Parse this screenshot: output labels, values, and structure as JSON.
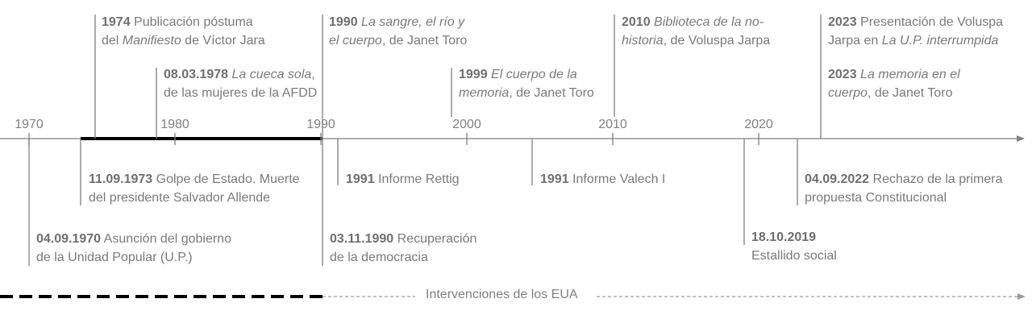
{
  "axis": {
    "ticks": [
      "1970",
      "1980",
      "1990",
      "2000",
      "2010",
      "2020"
    ]
  },
  "events_above": [
    {
      "date": "1974",
      "parts": [
        {
          "t": " Publicación póstuma",
          "s": "n"
        },
        {
          "t": "\n",
          "s": "n"
        },
        {
          "t": "del ",
          "s": "n"
        },
        {
          "t": "Manifiesto",
          "s": "i"
        },
        {
          "t": " de Víctor Jara",
          "s": "n"
        }
      ]
    },
    {
      "date": "08.03.1978",
      "parts": [
        {
          "t": " ",
          "s": "n"
        },
        {
          "t": "La cueca sola",
          "s": "i"
        },
        {
          "t": ",",
          "s": "n"
        },
        {
          "t": "\n",
          "s": "n"
        },
        {
          "t": "de las mujeres de la AFDD",
          "s": "n"
        }
      ]
    },
    {
      "date": "1990",
      "parts": [
        {
          "t": " ",
          "s": "n"
        },
        {
          "t": "La sangre, el río y",
          "s": "i"
        },
        {
          "t": "\n",
          "s": "n"
        },
        {
          "t": "el cuerpo",
          "s": "i"
        },
        {
          "t": ", de Janet Toro",
          "s": "n"
        }
      ]
    },
    {
      "date": "1999",
      "parts": [
        {
          "t": " ",
          "s": "n"
        },
        {
          "t": "El cuerpo de la",
          "s": "i"
        },
        {
          "t": "\n",
          "s": "n"
        },
        {
          "t": "memoria",
          "s": "i"
        },
        {
          "t": ", de Janet Toro",
          "s": "n"
        }
      ]
    },
    {
      "date": "2010",
      "parts": [
        {
          "t": " ",
          "s": "n"
        },
        {
          "t": "Biblioteca de la no-",
          "s": "i"
        },
        {
          "t": "\n",
          "s": "n"
        },
        {
          "t": "historia",
          "s": "i"
        },
        {
          "t": ", de Voluspa Jarpa",
          "s": "n"
        }
      ]
    },
    {
      "date": "2023",
      "parts": [
        {
          "t": " Presentación de Voluspa",
          "s": "n"
        },
        {
          "t": "\n",
          "s": "n"
        },
        {
          "t": "Jarpa en ",
          "s": "n"
        },
        {
          "t": "La U.P. interrumpida",
          "s": "i"
        }
      ]
    },
    {
      "date": "2023",
      "parts": [
        {
          "t": " ",
          "s": "n"
        },
        {
          "t": "La memoria en el",
          "s": "i"
        },
        {
          "t": "\n",
          "s": "n"
        },
        {
          "t": "cuerpo",
          "s": "i"
        },
        {
          "t": ", de Janet Toro",
          "s": "n"
        }
      ]
    }
  ],
  "events_below": [
    {
      "date": "11.09.1973",
      "parts": [
        {
          "t": " Golpe de Estado. Muerte",
          "s": "n"
        },
        {
          "t": "\n",
          "s": "n"
        },
        {
          "t": "del presidente Salvador Allende",
          "s": "n"
        }
      ]
    },
    {
      "date": "1991",
      "parts": [
        {
          "t": " Informe Rettig",
          "s": "n"
        }
      ]
    },
    {
      "date": "1991",
      "parts": [
        {
          "t": " Informe Valech I",
          "s": "n"
        }
      ]
    },
    {
      "date": "04.09.2022",
      "parts": [
        {
          "t": " Rechazo de la primera",
          "s": "n"
        },
        {
          "t": "\n",
          "s": "n"
        },
        {
          "t": "propuesta Constitucional",
          "s": "n"
        }
      ]
    },
    {
      "date": "04.09.1970",
      "parts": [
        {
          "t": " Asunción del gobierno",
          "s": "n"
        },
        {
          "t": "\n",
          "s": "n"
        },
        {
          "t": "de la Unidad Popular (U.P.)",
          "s": "n"
        }
      ]
    },
    {
      "date": "03.11.1990",
      "parts": [
        {
          "t": " Recuperación",
          "s": "n"
        },
        {
          "t": "\n",
          "s": "n"
        },
        {
          "t": "de la democracia",
          "s": "n"
        }
      ]
    },
    {
      "date": "18.10.2019",
      "parts": [
        {
          "t": "\n",
          "s": "n"
        },
        {
          "t": "Estallido social",
          "s": "n"
        }
      ]
    }
  ],
  "legend": {
    "label": "Intervenciones de los EUA"
  },
  "colors": {
    "text": "#7a7a7a",
    "axis": "#808080",
    "dictatorship": "#000000"
  }
}
